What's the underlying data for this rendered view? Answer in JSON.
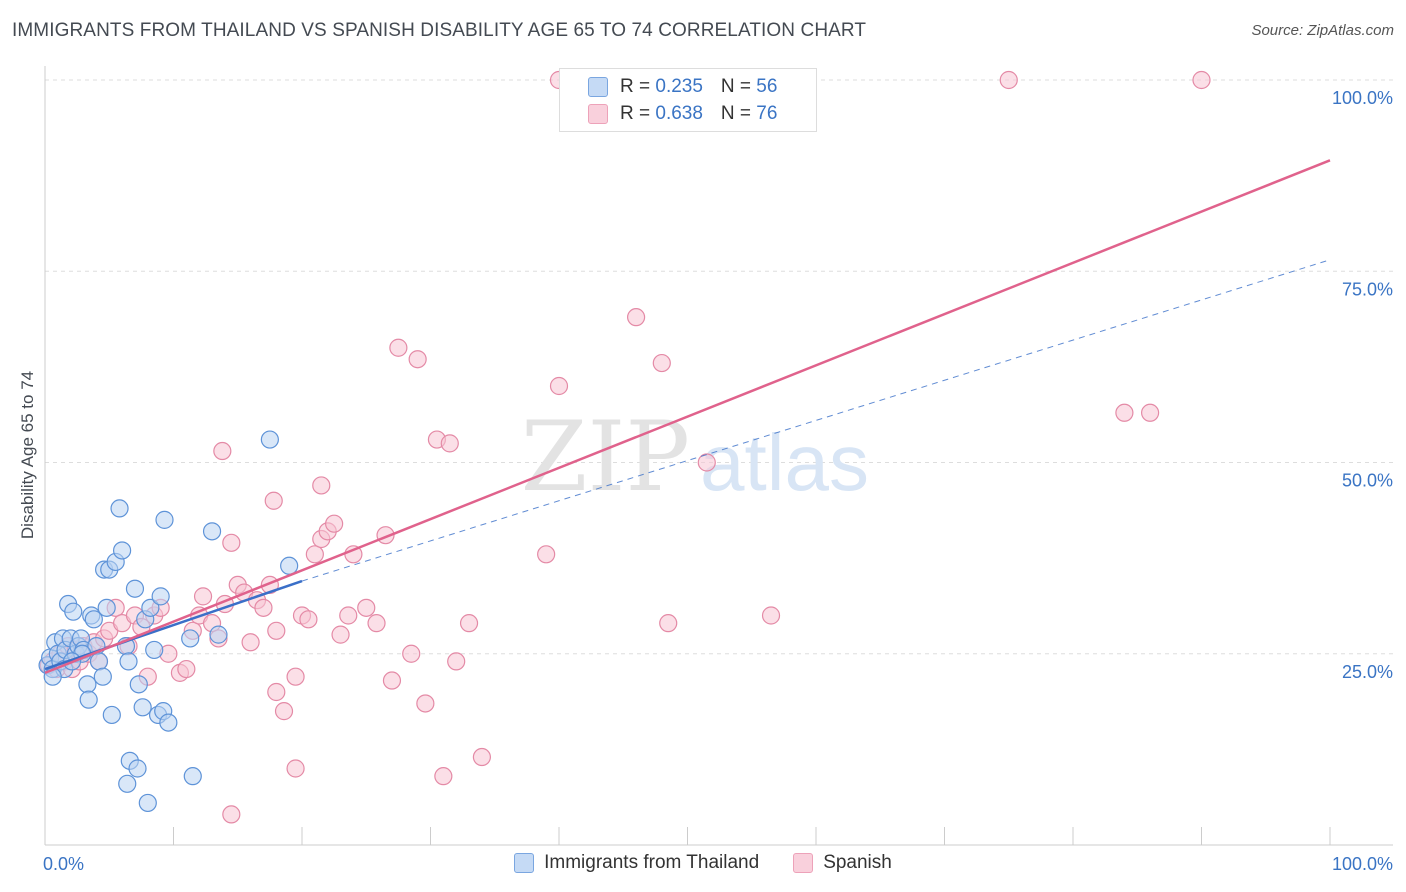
{
  "title": "IMMIGRANTS FROM THAILAND VS SPANISH DISABILITY AGE 65 TO 74 CORRELATION CHART",
  "source": "Source: ZipAtlas.com",
  "watermark": {
    "zip": "ZIP",
    "atlas": "atlas"
  },
  "legend": [
    {
      "r_label": "R = ",
      "r_value": "0.235",
      "n_label": "N = ",
      "n_value": "56"
    },
    {
      "r_label": "R = ",
      "r_value": "0.638",
      "n_label": "N = ",
      "n_value": "76"
    }
  ],
  "colors": {
    "thailand_fill": "#b9d3f3",
    "thailand_stroke": "#5e93d8",
    "thailand_line": "#3a6fc8",
    "spanish_fill": "#f7c5d4",
    "spanish_stroke": "#e48aa6",
    "spanish_line": "#e0628c",
    "tick_label": "#3a74c4",
    "grid": "#dddddd"
  },
  "chart_data": {
    "type": "scatter",
    "xlabel": "",
    "ylabel": "Disability Age 65 to 74",
    "xlim": [
      0,
      100
    ],
    "ylim": [
      0,
      100
    ],
    "x_tick_labels": [
      {
        "value": 0,
        "label": "0.0%"
      },
      {
        "value": 100,
        "label": "100.0%"
      }
    ],
    "y_tick_labels": [
      {
        "value": 25,
        "label": "25.0%"
      },
      {
        "value": 50,
        "label": "50.0%"
      },
      {
        "value": 75,
        "label": "75.0%"
      },
      {
        "value": 100,
        "label": "100.0%"
      }
    ],
    "grid": true,
    "series": [
      {
        "name": "Immigrants from Thailand",
        "points": [
          [
            0.2,
            23.5
          ],
          [
            0.4,
            24.5
          ],
          [
            0.6,
            23
          ],
          [
            0.8,
            26.5
          ],
          [
            1,
            25
          ],
          [
            1.2,
            24
          ],
          [
            1.4,
            27
          ],
          [
            1.6,
            25.5
          ],
          [
            1.8,
            31.5
          ],
          [
            2,
            27
          ],
          [
            2.2,
            30.5
          ],
          [
            2.4,
            25
          ],
          [
            2.6,
            26
          ],
          [
            2.8,
            27
          ],
          [
            3,
            25.5
          ],
          [
            3.3,
            21
          ],
          [
            3.6,
            30
          ],
          [
            3.8,
            29.5
          ],
          [
            4,
            26
          ],
          [
            4.2,
            24
          ],
          [
            4.5,
            22
          ],
          [
            4.8,
            31
          ],
          [
            2.9,
            25
          ],
          [
            1.5,
            23
          ],
          [
            4.6,
            36
          ],
          [
            5,
            36
          ],
          [
            5.5,
            37
          ],
          [
            5.8,
            44
          ],
          [
            6,
            38.5
          ],
          [
            6.3,
            26
          ],
          [
            3.4,
            19
          ],
          [
            5.2,
            17
          ],
          [
            6.5,
            24
          ],
          [
            7,
            33.5
          ],
          [
            7.3,
            21
          ],
          [
            7.6,
            18
          ],
          [
            7.8,
            29.5
          ],
          [
            8.2,
            31
          ],
          [
            8.5,
            25.5
          ],
          [
            8.8,
            17
          ],
          [
            9.2,
            17.5
          ],
          [
            9.6,
            16
          ],
          [
            9,
            32.5
          ],
          [
            9.3,
            42.5
          ],
          [
            6.6,
            11
          ],
          [
            7.2,
            10
          ],
          [
            6.4,
            8
          ],
          [
            8,
            5.5
          ],
          [
            11.3,
            27
          ],
          [
            11.5,
            9
          ],
          [
            13,
            41
          ],
          [
            13.5,
            27.5
          ],
          [
            17.5,
            53
          ],
          [
            19,
            36.5
          ],
          [
            0.6,
            22
          ],
          [
            2.1,
            24
          ]
        ]
      },
      {
        "name": "Spanish",
        "points": [
          [
            0.3,
            23.5
          ],
          [
            0.6,
            24
          ],
          [
            0.9,
            23
          ],
          [
            1.2,
            25
          ],
          [
            1.5,
            24
          ],
          [
            1.8,
            26
          ],
          [
            2.1,
            23
          ],
          [
            2.4,
            25.5
          ],
          [
            2.7,
            24
          ],
          [
            3,
            26
          ],
          [
            3.4,
            25
          ],
          [
            3.8,
            26.5
          ],
          [
            4.2,
            24
          ],
          [
            4.6,
            27
          ],
          [
            5,
            28
          ],
          [
            5.5,
            31
          ],
          [
            6,
            29
          ],
          [
            6.5,
            26
          ],
          [
            7,
            30
          ],
          [
            7.5,
            28.5
          ],
          [
            8,
            22
          ],
          [
            8.5,
            30
          ],
          [
            9,
            31
          ],
          [
            9.6,
            25
          ],
          [
            10.5,
            22.5
          ],
          [
            11,
            23
          ],
          [
            11.5,
            28
          ],
          [
            12,
            30
          ],
          [
            12.3,
            32.5
          ],
          [
            13,
            29
          ],
          [
            13.5,
            27
          ],
          [
            14,
            31.5
          ],
          [
            14.5,
            39.5
          ],
          [
            15,
            34
          ],
          [
            15.5,
            33
          ],
          [
            16,
            26.5
          ],
          [
            16.5,
            32
          ],
          [
            17,
            31
          ],
          [
            17.5,
            34
          ],
          [
            18,
            28
          ],
          [
            18.6,
            17.5
          ],
          [
            19.5,
            22
          ],
          [
            20,
            30
          ],
          [
            20.5,
            29.5
          ],
          [
            21,
            38
          ],
          [
            21.5,
            40
          ],
          [
            22,
            41
          ],
          [
            22.5,
            42
          ],
          [
            23,
            27.5
          ],
          [
            23.6,
            30
          ],
          [
            24,
            38
          ],
          [
            25,
            31
          ],
          [
            25.8,
            29
          ],
          [
            26.5,
            40.5
          ],
          [
            27,
            21.5
          ],
          [
            27.5,
            65
          ],
          [
            28.5,
            25
          ],
          [
            29,
            63.5
          ],
          [
            29.6,
            18.5
          ],
          [
            30.5,
            53
          ],
          [
            31,
            9
          ],
          [
            31.5,
            52.5
          ],
          [
            32,
            24
          ],
          [
            33,
            29
          ],
          [
            34,
            11.5
          ],
          [
            39,
            38
          ],
          [
            40,
            60
          ],
          [
            46,
            69
          ],
          [
            48,
            63
          ],
          [
            48.5,
            29
          ],
          [
            51.5,
            50
          ],
          [
            56.5,
            30
          ],
          [
            84,
            56.5
          ],
          [
            86,
            56.5
          ],
          [
            17.8,
            45
          ],
          [
            13.8,
            51.5
          ]
        ],
        "extra_points": [
          [
            14.5,
            4
          ],
          [
            18,
            20
          ],
          [
            19.5,
            10
          ],
          [
            21.5,
            47
          ]
        ]
      }
    ],
    "top_row_points": {
      "spanish": [
        [
          40,
          100
        ],
        [
          53,
          100
        ],
        [
          75,
          100
        ],
        [
          90,
          100
        ]
      ]
    },
    "trend_lines": [
      {
        "series": "Immigrants from Thailand",
        "solid": [
          [
            0,
            23
          ],
          [
            20,
            34.5
          ]
        ],
        "dashed_to": [
          100,
          76.5
        ]
      },
      {
        "series": "Spanish",
        "solid": [
          [
            0,
            22.5
          ],
          [
            100,
            89.5
          ]
        ]
      }
    ]
  },
  "bottom_legend": [
    {
      "label": "Immigrants from Thailand"
    },
    {
      "label": "Spanish"
    }
  ]
}
